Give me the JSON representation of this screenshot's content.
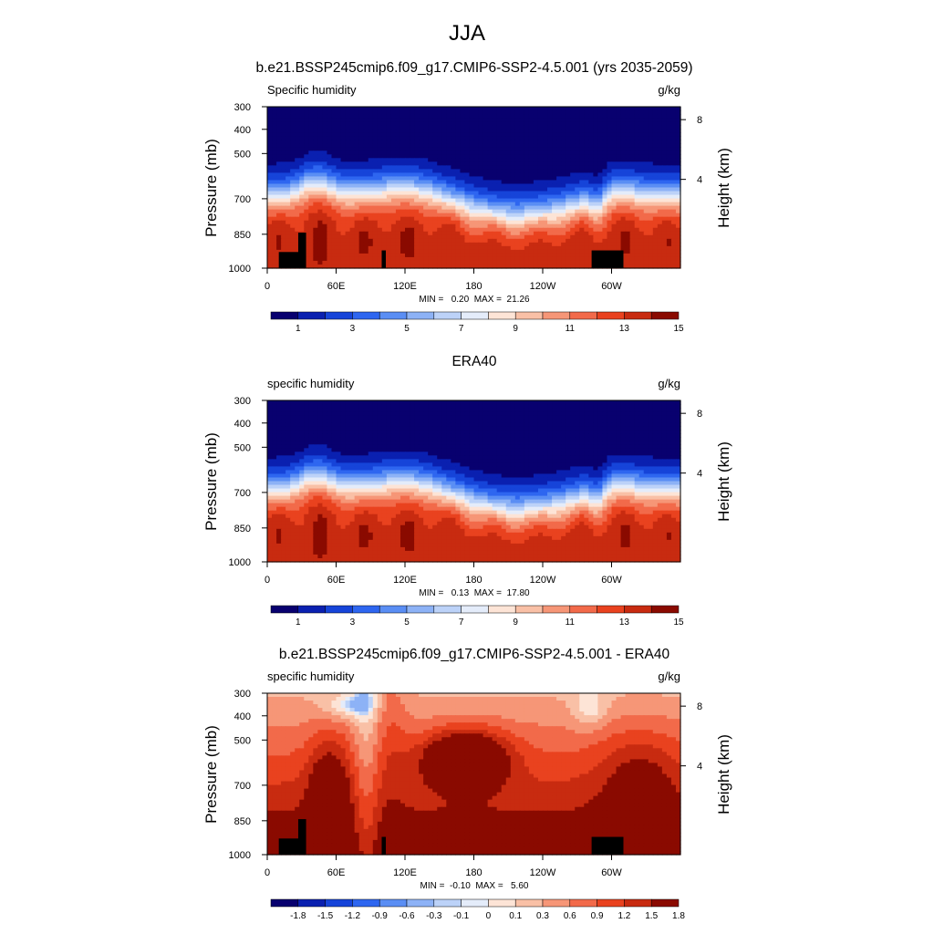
{
  "figure": {
    "title": "JJA"
  },
  "chart_data": [
    {
      "type": "heatmap",
      "title": "b.e21.BSSP245cmip6.f09_g17.CMIP6-SSP2-4.5.001 (yrs 2035-2059)",
      "left_label": "Specific humidity",
      "units": "g/kg",
      "ylabel": "Pressure (mb)",
      "y2label": "Height (km)",
      "yticks": [
        "300",
        "400",
        "500",
        "700",
        "850",
        "1000"
      ],
      "y2ticks": [
        "8",
        "4"
      ],
      "xticks": [
        "0",
        "60E",
        "120E",
        "180",
        "120W",
        "60W"
      ],
      "stats": "MIN =   0.20  MAX =  21.26",
      "colorbar_labels": [
        "1",
        "3",
        "5",
        "7",
        "9",
        "11",
        "13",
        "15"
      ],
      "field": "humidity",
      "terrain": true
    },
    {
      "type": "heatmap",
      "title": "ERA40",
      "left_label": "specific humidity",
      "units": "g/kg",
      "ylabel": "Pressure (mb)",
      "y2label": "Height (km)",
      "yticks": [
        "300",
        "400",
        "500",
        "700",
        "850",
        "1000"
      ],
      "y2ticks": [
        "8",
        "4"
      ],
      "xticks": [
        "0",
        "60E",
        "120E",
        "180",
        "120W",
        "60W"
      ],
      "stats": "MIN =   0.13  MAX =  17.80",
      "colorbar_labels": [
        "1",
        "3",
        "5",
        "7",
        "9",
        "11",
        "13",
        "15"
      ],
      "field": "humidity",
      "terrain": false
    },
    {
      "type": "heatmap",
      "title": "b.e21.BSSP245cmip6.f09_g17.CMIP6-SSP2-4.5.001 - ERA40",
      "left_label": "specific humidity",
      "units": "g/kg",
      "ylabel": "Pressure (mb)",
      "y2label": "Height (km)",
      "yticks": [
        "300",
        "400",
        "500",
        "700",
        "850",
        "1000"
      ],
      "y2ticks": [
        "8",
        "4"
      ],
      "xticks": [
        "0",
        "60E",
        "120E",
        "180",
        "120W",
        "60W"
      ],
      "stats": "MIN =  -0.10  MAX =   5.60",
      "colorbar_labels": [
        "-1.8",
        "-1.5",
        "-1.2",
        "-0.9",
        "-0.6",
        "-0.3",
        "-0.1",
        "0",
        "0.1",
        "0.3",
        "0.6",
        "0.9",
        "1.2",
        "1.5",
        "1.8"
      ],
      "field": "difference",
      "terrain": true
    }
  ],
  "palette": [
    "#08006f",
    "#0a20b0",
    "#1644d9",
    "#2e66f0",
    "#5a8ef4",
    "#8db2f6",
    "#bcd2f8",
    "#e4ecfa",
    "#fde4d6",
    "#f9c0a6",
    "#f69677",
    "#f26a4a",
    "#e9421f",
    "#c82b10",
    "#8a0a00"
  ]
}
